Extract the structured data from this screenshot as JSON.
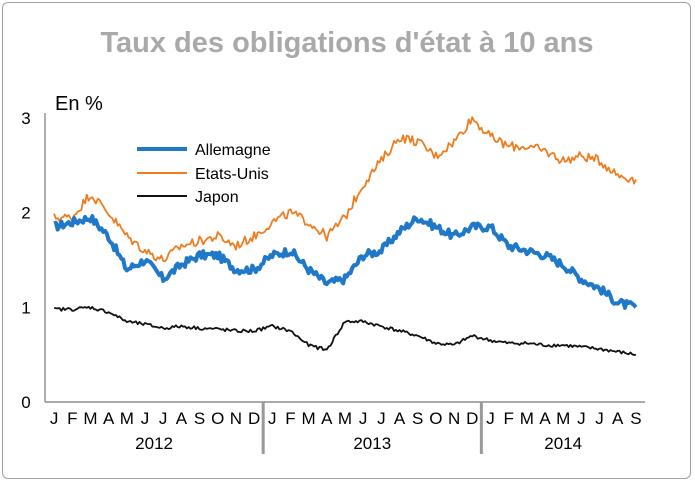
{
  "chart_data": {
    "type": "line",
    "title": "Taux des obligations d'état à 10 ans",
    "ylabel": "En %",
    "ylim": [
      0,
      3
    ],
    "yticks": [
      "0",
      "1",
      "2",
      "3"
    ],
    "grid": false,
    "legend_position": "top-left",
    "years": [
      "2012",
      "2013",
      "2014"
    ],
    "month_labels": [
      "J",
      "F",
      "M",
      "A",
      "M",
      "J",
      "J",
      "A",
      "S",
      "O",
      "N",
      "D",
      "J",
      "F",
      "M",
      "A",
      "M",
      "J",
      "J",
      "A",
      "S",
      "O",
      "N",
      "D",
      "J",
      "F",
      "M",
      "A",
      "M",
      "J",
      "J",
      "A",
      "S"
    ],
    "x": [
      "2012-01",
      "2012-02",
      "2012-03",
      "2012-04",
      "2012-05",
      "2012-06",
      "2012-07",
      "2012-08",
      "2012-09",
      "2012-10",
      "2012-11",
      "2012-12",
      "2013-01",
      "2013-02",
      "2013-03",
      "2013-04",
      "2013-05",
      "2013-06",
      "2013-07",
      "2013-08",
      "2013-09",
      "2013-10",
      "2013-11",
      "2013-12",
      "2014-01",
      "2014-02",
      "2014-03",
      "2014-04",
      "2014-05",
      "2014-06",
      "2014-07",
      "2014-08",
      "2014-09"
    ],
    "series": [
      {
        "name": "Allemagne",
        "color": "#1f78c8",
        "values": [
          1.85,
          1.9,
          1.95,
          1.75,
          1.4,
          1.5,
          1.3,
          1.45,
          1.55,
          1.55,
          1.4,
          1.4,
          1.55,
          1.6,
          1.4,
          1.25,
          1.3,
          1.55,
          1.6,
          1.8,
          1.95,
          1.85,
          1.75,
          1.85,
          1.85,
          1.65,
          1.6,
          1.55,
          1.45,
          1.3,
          1.2,
          1.05,
          1.0
        ]
      },
      {
        "name": "Etats-Unis",
        "color": "#ee7d1f",
        "values": [
          1.95,
          1.95,
          2.2,
          2.0,
          1.75,
          1.6,
          1.5,
          1.65,
          1.7,
          1.75,
          1.65,
          1.75,
          1.9,
          2.0,
          1.9,
          1.75,
          1.95,
          2.3,
          2.55,
          2.8,
          2.75,
          2.6,
          2.75,
          3.0,
          2.8,
          2.7,
          2.7,
          2.65,
          2.55,
          2.6,
          2.55,
          2.4,
          2.35
        ]
      },
      {
        "name": "Japon",
        "color": "#111111",
        "values": [
          0.98,
          0.98,
          1.0,
          0.95,
          0.85,
          0.82,
          0.78,
          0.8,
          0.78,
          0.77,
          0.75,
          0.75,
          0.8,
          0.75,
          0.6,
          0.55,
          0.85,
          0.85,
          0.8,
          0.75,
          0.7,
          0.62,
          0.6,
          0.7,
          0.65,
          0.62,
          0.62,
          0.6,
          0.6,
          0.58,
          0.56,
          0.53,
          0.5
        ]
      }
    ]
  }
}
